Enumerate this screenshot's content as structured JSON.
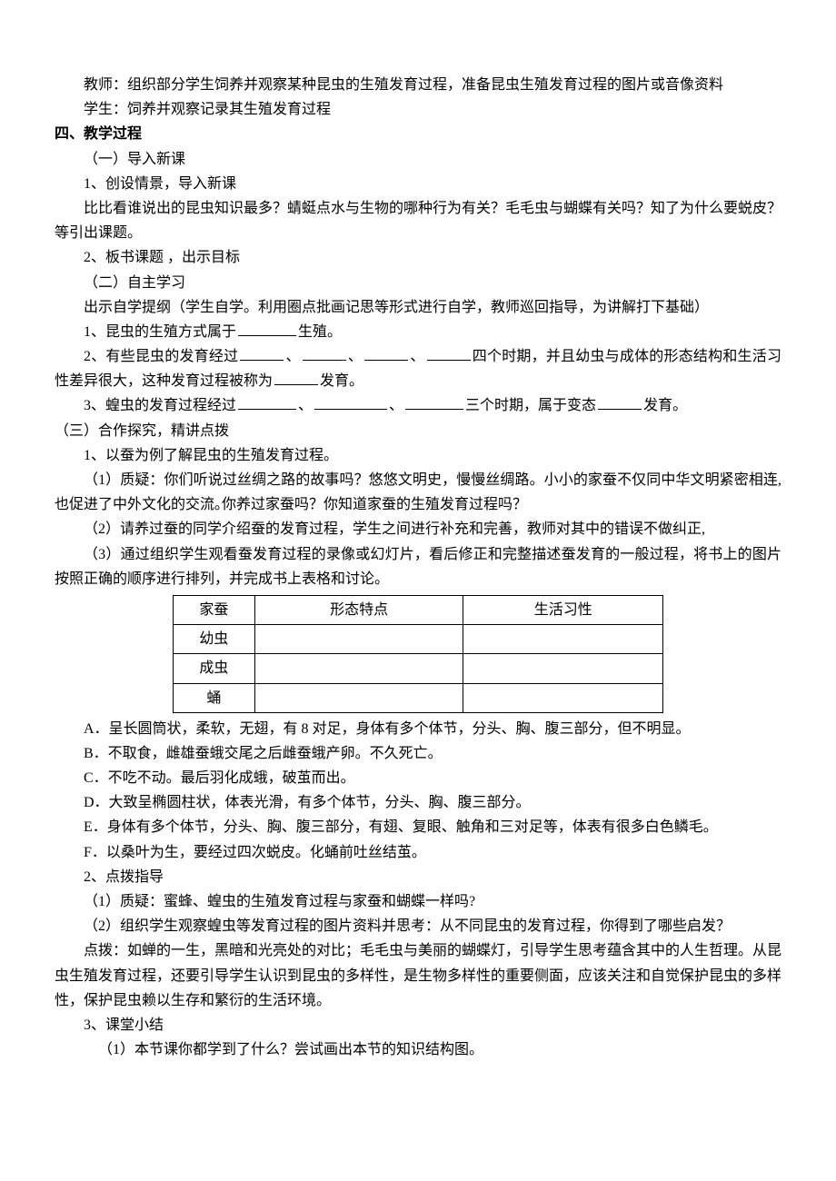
{
  "p1": "教师：组织部分学生饲养并观察某种昆虫的生殖发育过程，准备昆虫生殖发育过程的图片或音像资料",
  "p2": "学生：饲养并观察记录其生殖发育过程",
  "heading4": "四、教学过程",
  "s1_title": "（一）导入新课",
  "s1_1": "1、创设情景，导入新课",
  "s1_1_text": "比比看谁说出的昆虫知识最多？蜻蜓点水与生物的哪种行为有关？毛毛虫与蝴蝶有关吗？知了为什么要蜕皮？等引出课题。",
  "s1_2": "2、板书课题 ，出示目标",
  "s2_title": "（二）自主学习",
  "s2_intro": "出示自学提纲（学生自学。利用圈点批画记思等形式进行自学，教师巡回指导，为讲解打下基础）",
  "s2_q1_pre": "1、昆虫的生殖方式属于",
  "s2_q1_post": "生殖。",
  "s2_q2_pre": "2、有些昆虫的发育经过",
  "s2_q2_mid1": "、",
  "s2_q2_mid2": "、",
  "s2_q2_mid3": "、",
  "s2_q2_post1": "四个时期，并且幼虫与成体的形态结构和生活习性差异很大，这种发育过程被称为",
  "s2_q2_post2": "发育。",
  "s2_q3_pre": "3、蝗虫的发育过程经过",
  "s2_q3_mid1": "、",
  "s2_q3_mid2": "、",
  "s2_q3_post1": "三个时期，属于变态",
  "s2_q3_post2": "发育。",
  "s3_title": "（三）合作探究，精讲点拨",
  "s3_1": "1、以蚕为例了解昆虫的生殖发育过程。",
  "s3_1_1": "（1）质疑：你们听说过丝绸之路的故事吗？悠悠文明史，慢慢丝绸路。小小的家蚕不仅同中华文明紧密相连,也促进了中外文化的交流｡你养过家蚕吗？你知道家蚕的生殖发育过程吗？",
  "s3_1_2": "（2）请养过蚕的同学介绍蚕的发育过程，学生之间进行补充和完善，教师对其中的错误不做纠正,",
  "s3_1_3": "（3）通过组织学生观看蚕发育过程的录像或幻灯片，看后修正和完整描述蚕发育的一般过程，将书上的图片按照正确的顺序进行排列，并完成书上表格和讨论。",
  "table": {
    "headers": [
      "家蚕",
      "形态特点",
      "生活习性"
    ],
    "rows": [
      [
        "幼虫",
        "",
        ""
      ],
      [
        "成虫",
        "",
        ""
      ],
      [
        "蛹",
        "",
        ""
      ]
    ]
  },
  "opt_a": "A．呈长圆筒状，柔软，无翅，有 8 对足，身体有多个体节，分头、胸、腹三部分，但不明显。",
  "opt_b": "B．不取食，雌雄蚕蛾交尾之后雌蚕蛾产卵。不久死亡。",
  "opt_c": "C．不吃不动。最后羽化成蛾，破茧而出。",
  "opt_d": "D．大致呈椭圆柱状，体表光滑，有多个体节，分头、胸、腹三部分。",
  "opt_e": "E．身体有多个体节，分头、胸、腹三部分，有翅、复眼、触角和三对足等，体表有很多白色鳞毛。",
  "opt_f": "F．以桑叶为生，要经过四次蜕皮。化蛹前吐丝结茧。",
  "s3_2": "2、点拨指导",
  "s3_2_1": "（1）质疑：蜜蜂、蝗虫的生殖发育过程与家蚕和蝴蝶一样吗?",
  "s3_2_2": "（2）组织学生观察蝗虫等发育过程的图片资料并思考：从不同昆虫的发育过程，你得到了哪些启发？",
  "s3_dianbo": "点拨：如蝉的一生，黑暗和光亮处的对比；毛毛虫与美丽的蝴蝶灯，引导学生思考蕴含其中的人生哲理。从昆虫生殖发育过程，还要引导学生认识到昆虫的多样性，是生物多样性的重要侧面，应该关注和自觉保护昆虫的多样性，保护昆虫赖以生存和繁衍的生活环境。",
  "s3_3": "3、课堂小结",
  "s3_3_1": "（1）本节课你都学到了什么？尝试画出本节的知识结构图。"
}
